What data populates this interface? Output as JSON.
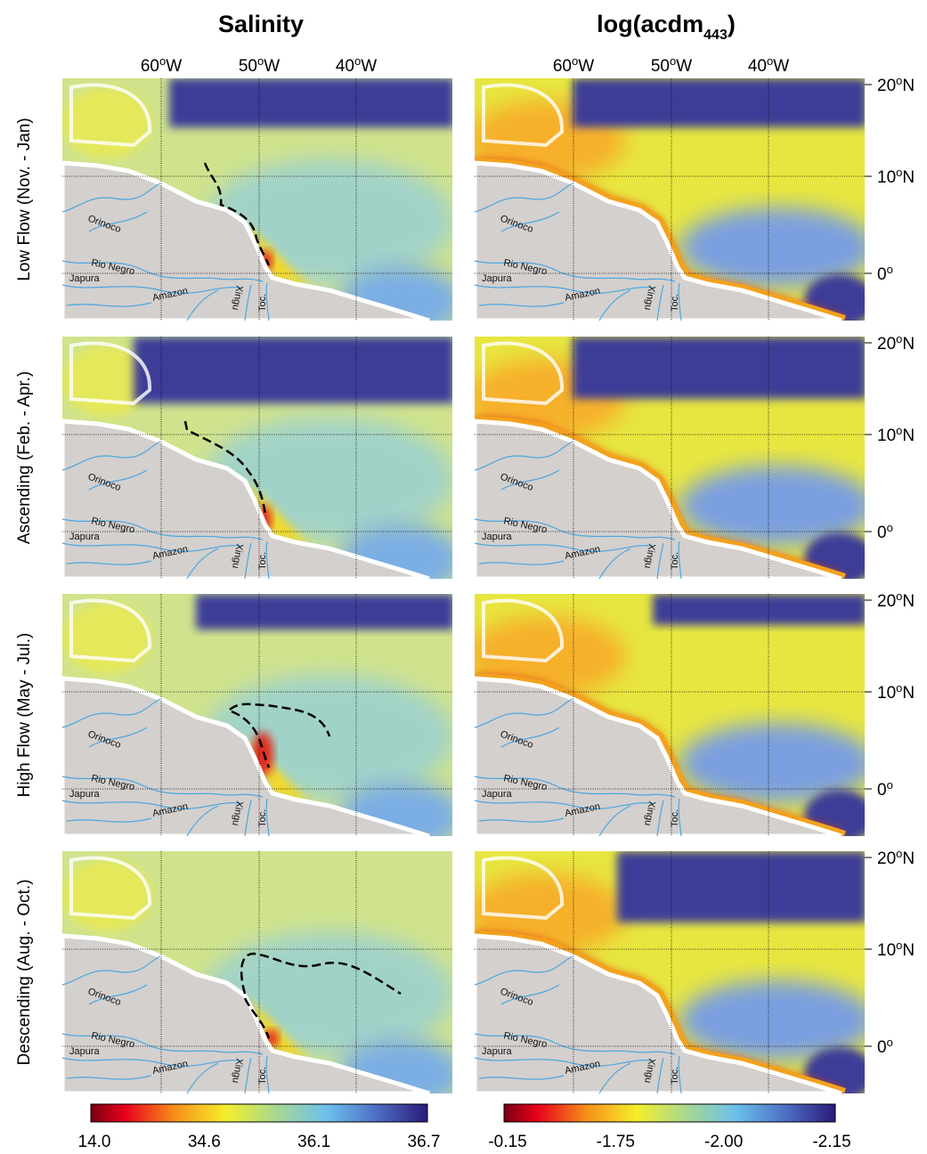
{
  "titles": [
    {
      "text": "Salinity"
    },
    {
      "text": "log(acdm",
      "subscript": "443",
      "suffix": ")"
    }
  ],
  "longitudes": [
    {
      "deg": "60",
      "sup": "o",
      "hem": "W"
    },
    {
      "deg": "50",
      "sup": "o",
      "hem": "W"
    },
    {
      "deg": "40",
      "sup": "o",
      "hem": "W"
    }
  ],
  "latitudes": [
    {
      "deg": "20",
      "sup": "o",
      "hem": "N"
    },
    {
      "deg": "10",
      "sup": "o",
      "hem": "N"
    },
    {
      "deg": "0",
      "sup": "o"
    }
  ],
  "rows": [
    "Low Flow (Nov. - Jan)",
    "Ascending (Feb. - Apr.)",
    "High Flow (May - Jul.)",
    "Descending  (Aug. - Oct.)"
  ],
  "rivers": {
    "orinoco": "Orinoco",
    "rio_negro": "Rio Negro",
    "japura": "Japura",
    "amazon": "Amazon",
    "xingu": "Xingu",
    "tocantins": "Toc."
  },
  "colorbars": [
    {
      "labels": [
        "14.0",
        "34.6",
        "36.1",
        "36.7"
      ]
    },
    {
      "labels": [
        "-0.15",
        "-1.75",
        "-2.00",
        "-2.15"
      ]
    }
  ]
}
